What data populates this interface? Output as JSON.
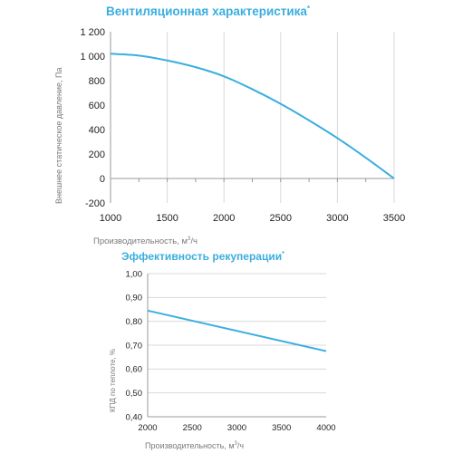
{
  "chart_data": [
    {
      "type": "line",
      "title": "Вентиляционная характеристика",
      "title_mark": "*",
      "xlabel_text": "Производительность, м",
      "xlabel_sup": "3",
      "xlabel_suffix": "/ч",
      "ylabel": "Внешнее статическое давление, Па",
      "xlim": [
        1000,
        3500
      ],
      "ylim": [
        -200,
        1200
      ],
      "x_ticks": [
        1000,
        1500,
        2000,
        2500,
        3000,
        3500
      ],
      "y_ticks": [
        -200,
        0,
        200,
        400,
        600,
        800,
        1000,
        1200
      ],
      "y_tick_labels": [
        "-200",
        "0",
        "200",
        "400",
        "600",
        "800",
        "1 000",
        "1 200"
      ],
      "grid": "vertical",
      "color": "#3aaee0",
      "series": [
        {
          "x": [
            1000,
            1250,
            1500,
            1750,
            2000,
            2250,
            2500,
            2750,
            3000,
            3250,
            3500
          ],
          "y": [
            1020,
            1005,
            965,
            910,
            835,
            730,
            610,
            475,
            330,
            170,
            0
          ]
        }
      ]
    },
    {
      "type": "line",
      "title": "Эффективность рекуперации",
      "title_mark": "*",
      "xlabel_text": "Производительность, м",
      "xlabel_sup": "3",
      "xlabel_suffix": "/ч",
      "ylabel": "КПД по теплоте, %",
      "xlim": [
        2000,
        4000
      ],
      "ylim": [
        0.4,
        1.0
      ],
      "x_ticks": [
        2000,
        2500,
        3000,
        3500,
        4000
      ],
      "y_ticks": [
        0.4,
        0.5,
        0.6,
        0.7,
        0.8,
        0.9,
        1.0
      ],
      "y_tick_labels": [
        "0,40",
        "0,50",
        "0,60",
        "0,70",
        "0,80",
        "0,90",
        "1,00"
      ],
      "grid": "horizontal",
      "color": "#3aaee0",
      "series": [
        {
          "x": [
            2000,
            4000
          ],
          "y": [
            0.845,
            0.675
          ]
        }
      ]
    }
  ]
}
